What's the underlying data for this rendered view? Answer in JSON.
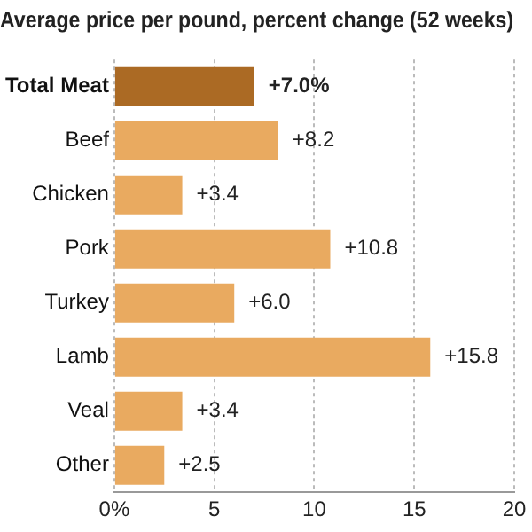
{
  "chart_data": {
    "type": "bar",
    "orientation": "horizontal",
    "title": "Average price per pound, percent change (52 weeks)",
    "categories": [
      "Total Meat",
      "Beef",
      "Chicken",
      "Pork",
      "Turkey",
      "Lamb",
      "Veal",
      "Other"
    ],
    "values": [
      7.0,
      8.2,
      3.4,
      10.8,
      6.0,
      15.8,
      3.4,
      2.5
    ],
    "colors": [
      "#ab6a24",
      "#e9aa60",
      "#e9aa60",
      "#e9aa60",
      "#e9aa60",
      "#e9aa60",
      "#e9aa60",
      "#e9aa60"
    ],
    "value_labels": [
      "+7.0%",
      "+8.2",
      "+3.4",
      "+10.8",
      "+6.0",
      "+15.8",
      "+3.4",
      "+2.5"
    ],
    "xlim": [
      0,
      20
    ],
    "xticks": [
      {
        "value": 0,
        "label": "0%"
      },
      5,
      10,
      15,
      20
    ],
    "grid": "x",
    "legend": false
  }
}
